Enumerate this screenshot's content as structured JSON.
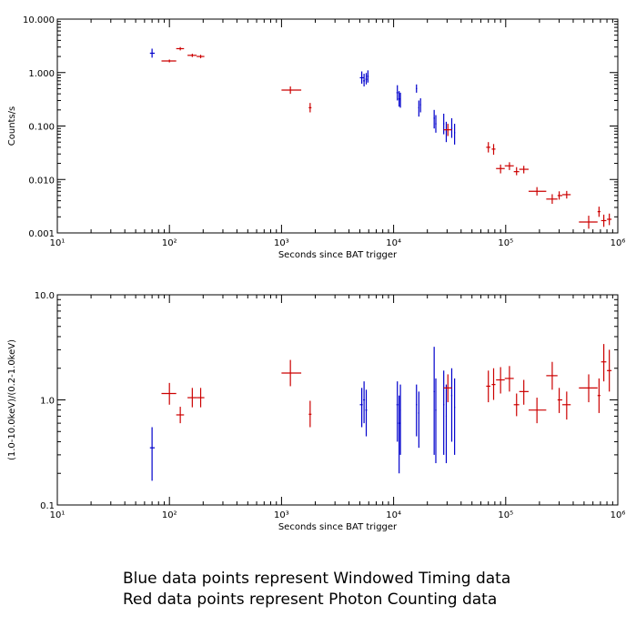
{
  "caption": {
    "line1": "Blue data points represent Windowed Timing data",
    "line2": "Red data points represent Photon Counting data"
  },
  "colors": {
    "wt": "#0000cc",
    "pc": "#cc0000",
    "axis": "#000000"
  },
  "chart_data": [
    {
      "type": "scatter",
      "xlabel": "Seconds since BAT trigger",
      "ylabel": "Counts/s",
      "xscale": "log",
      "yscale": "log",
      "xlim": [
        10,
        1000000
      ],
      "ylim": [
        0.001,
        10
      ],
      "xticks": [
        "10¹",
        "10²",
        "10³",
        "10⁴",
        "10⁵",
        "10⁶"
      ],
      "yticks": [
        "0.001",
        "0.010",
        "0.100",
        "1.000",
        "10.000"
      ],
      "series": [
        {
          "mode": "WT",
          "points": [
            {
              "x": 70,
              "xlo": 67,
              "xhi": 74,
              "y": 2.3,
              "ylo": 1.9,
              "yhi": 2.8
            },
            {
              "x": 5200,
              "xlo": 5000,
              "xhi": 5400,
              "y": 0.8,
              "ylo": 0.62,
              "yhi": 1.05
            },
            {
              "x": 5450,
              "xlo": 5350,
              "xhi": 5550,
              "y": 0.7,
              "ylo": 0.55,
              "yhi": 0.95
            },
            {
              "x": 5700,
              "xlo": 5600,
              "xhi": 5800,
              "y": 0.75,
              "ylo": 0.6,
              "yhi": 0.98
            },
            {
              "x": 5900,
              "xlo": 5800,
              "xhi": 6000,
              "y": 0.85,
              "ylo": 0.65,
              "yhi": 1.1
            },
            {
              "x": 10800,
              "xlo": 10600,
              "xhi": 11000,
              "y": 0.42,
              "ylo": 0.3,
              "yhi": 0.58
            },
            {
              "x": 11200,
              "xlo": 11000,
              "xhi": 11400,
              "y": 0.32,
              "ylo": 0.23,
              "yhi": 0.45
            },
            {
              "x": 11500,
              "xlo": 11400,
              "xhi": 11600,
              "y": 0.3,
              "ylo": 0.22,
              "yhi": 0.42
            },
            {
              "x": 16000,
              "xlo": 15800,
              "xhi": 16200,
              "y": 0.5,
              "ylo": 0.42,
              "yhi": 0.6
            },
            {
              "x": 16800,
              "xlo": 16600,
              "xhi": 17000,
              "y": 0.22,
              "ylo": 0.15,
              "yhi": 0.3
            },
            {
              "x": 17400,
              "xlo": 17200,
              "xhi": 17600,
              "y": 0.25,
              "ylo": 0.18,
              "yhi": 0.33
            },
            {
              "x": 23000,
              "xlo": 22700,
              "xhi": 23300,
              "y": 0.14,
              "ylo": 0.09,
              "yhi": 0.2
            },
            {
              "x": 23800,
              "xlo": 23500,
              "xhi": 24100,
              "y": 0.11,
              "ylo": 0.075,
              "yhi": 0.16
            },
            {
              "x": 28000,
              "xlo": 27700,
              "xhi": 28300,
              "y": 0.11,
              "ylo": 0.07,
              "yhi": 0.17
            },
            {
              "x": 29500,
              "xlo": 29200,
              "xhi": 29800,
              "y": 0.08,
              "ylo": 0.05,
              "yhi": 0.12
            },
            {
              "x": 33000,
              "xlo": 32600,
              "xhi": 33400,
              "y": 0.09,
              "ylo": 0.06,
              "yhi": 0.14
            },
            {
              "x": 35000,
              "xlo": 34600,
              "xhi": 35400,
              "y": 0.075,
              "ylo": 0.045,
              "yhi": 0.11
            }
          ]
        },
        {
          "mode": "PC",
          "points": [
            {
              "x": 100,
              "xlo": 85,
              "xhi": 115,
              "y": 1.65,
              "ylo": 1.55,
              "yhi": 1.75
            },
            {
              "x": 125,
              "xlo": 115,
              "xhi": 135,
              "y": 2.8,
              "ylo": 2.6,
              "yhi": 3.0
            },
            {
              "x": 160,
              "xlo": 145,
              "xhi": 175,
              "y": 2.1,
              "ylo": 1.95,
              "yhi": 2.25
            },
            {
              "x": 190,
              "xlo": 175,
              "xhi": 205,
              "y": 2.0,
              "ylo": 1.85,
              "yhi": 2.15
            },
            {
              "x": 1200,
              "xlo": 1000,
              "xhi": 1500,
              "y": 0.47,
              "ylo": 0.4,
              "yhi": 0.55
            },
            {
              "x": 1800,
              "xlo": 1750,
              "xhi": 1850,
              "y": 0.22,
              "ylo": 0.18,
              "yhi": 0.27
            },
            {
              "x": 30500,
              "xlo": 28000,
              "xhi": 33000,
              "y": 0.085,
              "ylo": 0.065,
              "yhi": 0.11
            },
            {
              "x": 70000,
              "xlo": 67000,
              "xhi": 73000,
              "y": 0.04,
              "ylo": 0.032,
              "yhi": 0.05
            },
            {
              "x": 78000,
              "xlo": 75000,
              "xhi": 81000,
              "y": 0.037,
              "ylo": 0.029,
              "yhi": 0.046
            },
            {
              "x": 90000,
              "xlo": 82000,
              "xhi": 98000,
              "y": 0.016,
              "ylo": 0.013,
              "yhi": 0.019
            },
            {
              "x": 108000,
              "xlo": 98000,
              "xhi": 118000,
              "y": 0.018,
              "ylo": 0.015,
              "yhi": 0.021
            },
            {
              "x": 125000,
              "xlo": 118000,
              "xhi": 132000,
              "y": 0.014,
              "ylo": 0.012,
              "yhi": 0.017
            },
            {
              "x": 145000,
              "xlo": 132000,
              "xhi": 160000,
              "y": 0.0155,
              "ylo": 0.013,
              "yhi": 0.018
            },
            {
              "x": 190000,
              "xlo": 160000,
              "xhi": 230000,
              "y": 0.006,
              "ylo": 0.005,
              "yhi": 0.0072
            },
            {
              "x": 260000,
              "xlo": 230000,
              "xhi": 290000,
              "y": 0.0043,
              "ylo": 0.0035,
              "yhi": 0.0053
            },
            {
              "x": 300000,
              "xlo": 290000,
              "xhi": 320000,
              "y": 0.005,
              "ylo": 0.0042,
              "yhi": 0.006
            },
            {
              "x": 350000,
              "xlo": 320000,
              "xhi": 380000,
              "y": 0.0052,
              "ylo": 0.0044,
              "yhi": 0.0061
            },
            {
              "x": 550000,
              "xlo": 450000,
              "xhi": 660000,
              "y": 0.0016,
              "ylo": 0.0012,
              "yhi": 0.0021
            },
            {
              "x": 680000,
              "xlo": 660000,
              "xhi": 700000,
              "y": 0.0025,
              "ylo": 0.002,
              "yhi": 0.0031
            },
            {
              "x": 750000,
              "xlo": 710000,
              "xhi": 790000,
              "y": 0.0017,
              "ylo": 0.0013,
              "yhi": 0.0022
            },
            {
              "x": 840000,
              "xlo": 800000,
              "xhi": 880000,
              "y": 0.0018,
              "ylo": 0.0014,
              "yhi": 0.0023
            }
          ]
        }
      ]
    },
    {
      "type": "scatter",
      "xlabel": "Seconds since BAT trigger",
      "ylabel": "(1.0-10.0keV)/(0.2-1.0keV)",
      "xscale": "log",
      "yscale": "log",
      "xlim": [
        10,
        1000000
      ],
      "ylim": [
        0.1,
        10
      ],
      "xticks": [
        "10¹",
        "10²",
        "10³",
        "10⁴",
        "10⁵",
        "10⁶"
      ],
      "yticks": [
        "0.1",
        "1.0",
        "10.0"
      ],
      "series": [
        {
          "mode": "WT",
          "points": [
            {
              "x": 70,
              "xlo": 67,
              "xhi": 74,
              "y": 0.35,
              "ylo": 0.17,
              "yhi": 0.55
            },
            {
              "x": 5200,
              "xlo": 5000,
              "xhi": 5300,
              "y": 0.9,
              "ylo": 0.55,
              "yhi": 1.3
            },
            {
              "x": 5450,
              "xlo": 5350,
              "xhi": 5550,
              "y": 1.0,
              "ylo": 0.6,
              "yhi": 1.5
            },
            {
              "x": 5700,
              "xlo": 5600,
              "xhi": 5800,
              "y": 0.8,
              "ylo": 0.45,
              "yhi": 1.25
            },
            {
              "x": 10800,
              "xlo": 10600,
              "xhi": 11000,
              "y": 0.9,
              "ylo": 0.4,
              "yhi": 1.5
            },
            {
              "x": 11200,
              "xlo": 11000,
              "xhi": 11400,
              "y": 0.6,
              "ylo": 0.2,
              "yhi": 1.1
            },
            {
              "x": 11500,
              "xlo": 11400,
              "xhi": 11600,
              "y": 0.8,
              "ylo": 0.3,
              "yhi": 1.4
            },
            {
              "x": 16000,
              "xlo": 15800,
              "xhi": 16200,
              "y": 0.9,
              "ylo": 0.45,
              "yhi": 1.4
            },
            {
              "x": 16800,
              "xlo": 16600,
              "xhi": 17000,
              "y": 0.75,
              "ylo": 0.35,
              "yhi": 1.2
            },
            {
              "x": 23000,
              "xlo": 22700,
              "xhi": 23300,
              "y": 1.2,
              "ylo": 0.3,
              "yhi": 3.2
            },
            {
              "x": 23800,
              "xlo": 23500,
              "xhi": 24100,
              "y": 0.8,
              "ylo": 0.25,
              "yhi": 1.6
            },
            {
              "x": 28000,
              "xlo": 27700,
              "xhi": 28300,
              "y": 0.9,
              "ylo": 0.3,
              "yhi": 1.9
            },
            {
              "x": 29500,
              "xlo": 29200,
              "xhi": 29800,
              "y": 0.7,
              "ylo": 0.25,
              "yhi": 1.4
            },
            {
              "x": 33000,
              "xlo": 32600,
              "xhi": 33400,
              "y": 1.1,
              "ylo": 0.4,
              "yhi": 2.0
            },
            {
              "x": 35000,
              "xlo": 34600,
              "xhi": 35400,
              "y": 0.85,
              "ylo": 0.3,
              "yhi": 1.6
            }
          ]
        },
        {
          "mode": "PC",
          "points": [
            {
              "x": 100,
              "xlo": 85,
              "xhi": 115,
              "y": 1.15,
              "ylo": 0.9,
              "yhi": 1.45
            },
            {
              "x": 125,
              "xlo": 115,
              "xhi": 135,
              "y": 0.72,
              "ylo": 0.6,
              "yhi": 0.86
            },
            {
              "x": 160,
              "xlo": 145,
              "xhi": 175,
              "y": 1.05,
              "ylo": 0.85,
              "yhi": 1.3
            },
            {
              "x": 190,
              "xlo": 175,
              "xhi": 205,
              "y": 1.05,
              "ylo": 0.85,
              "yhi": 1.3
            },
            {
              "x": 1200,
              "xlo": 1000,
              "xhi": 1500,
              "y": 1.8,
              "ylo": 1.35,
              "yhi": 2.4
            },
            {
              "x": 1800,
              "xlo": 1750,
              "xhi": 1850,
              "y": 0.73,
              "ylo": 0.55,
              "yhi": 0.98
            },
            {
              "x": 30500,
              "xlo": 28000,
              "xhi": 33000,
              "y": 1.3,
              "ylo": 0.95,
              "yhi": 1.75
            },
            {
              "x": 70000,
              "xlo": 67000,
              "xhi": 73000,
              "y": 1.35,
              "ylo": 0.95,
              "yhi": 1.9
            },
            {
              "x": 78000,
              "xlo": 75000,
              "xhi": 81000,
              "y": 1.4,
              "ylo": 1.0,
              "yhi": 2.0
            },
            {
              "x": 90000,
              "xlo": 82000,
              "xhi": 98000,
              "y": 1.55,
              "ylo": 1.15,
              "yhi": 2.05
            },
            {
              "x": 108000,
              "xlo": 98000,
              "xhi": 118000,
              "y": 1.6,
              "ylo": 1.2,
              "yhi": 2.1
            },
            {
              "x": 125000,
              "xlo": 118000,
              "xhi": 132000,
              "y": 0.9,
              "ylo": 0.7,
              "yhi": 1.15
            },
            {
              "x": 145000,
              "xlo": 132000,
              "xhi": 160000,
              "y": 1.2,
              "ylo": 0.9,
              "yhi": 1.55
            },
            {
              "x": 190000,
              "xlo": 160000,
              "xhi": 230000,
              "y": 0.8,
              "ylo": 0.6,
              "yhi": 1.05
            },
            {
              "x": 260000,
              "xlo": 230000,
              "xhi": 290000,
              "y": 1.7,
              "ylo": 1.25,
              "yhi": 2.3
            },
            {
              "x": 300000,
              "xlo": 290000,
              "xhi": 320000,
              "y": 1.0,
              "ylo": 0.75,
              "yhi": 1.3
            },
            {
              "x": 350000,
              "xlo": 320000,
              "xhi": 380000,
              "y": 0.9,
              "ylo": 0.65,
              "yhi": 1.2
            },
            {
              "x": 550000,
              "xlo": 450000,
              "xhi": 660000,
              "y": 1.3,
              "ylo": 0.95,
              "yhi": 1.75
            },
            {
              "x": 680000,
              "xlo": 660000,
              "xhi": 700000,
              "y": 1.1,
              "ylo": 0.75,
              "yhi": 1.6
            },
            {
              "x": 750000,
              "xlo": 710000,
              "xhi": 790000,
              "y": 2.3,
              "ylo": 1.5,
              "yhi": 3.4
            },
            {
              "x": 840000,
              "xlo": 800000,
              "xhi": 880000,
              "y": 1.9,
              "ylo": 1.2,
              "yhi": 3.0
            }
          ]
        }
      ]
    }
  ]
}
